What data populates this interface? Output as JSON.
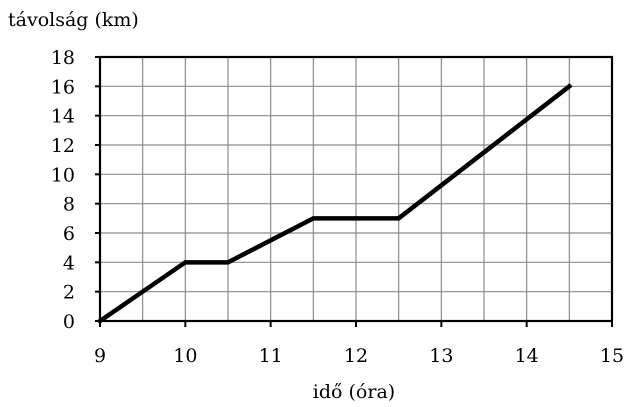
{
  "chart_data": {
    "type": "line",
    "ylabel": "távolság (km)",
    "xlabel": "idő (óra)",
    "xlim": [
      9,
      15
    ],
    "ylim": [
      0,
      18
    ],
    "x_ticks": [
      9,
      10,
      11,
      12,
      13,
      14,
      15
    ],
    "y_ticks": [
      0,
      2,
      4,
      6,
      8,
      10,
      12,
      14,
      16,
      18
    ],
    "grid": true,
    "series": [
      {
        "x": [
          9,
          10,
          10.5,
          11.5,
          12.5,
          14.5
        ],
        "y": [
          0,
          4,
          4,
          7,
          7,
          16
        ]
      }
    ],
    "colors": {
      "line": "#000000",
      "grid": "#8c8c8c"
    }
  }
}
